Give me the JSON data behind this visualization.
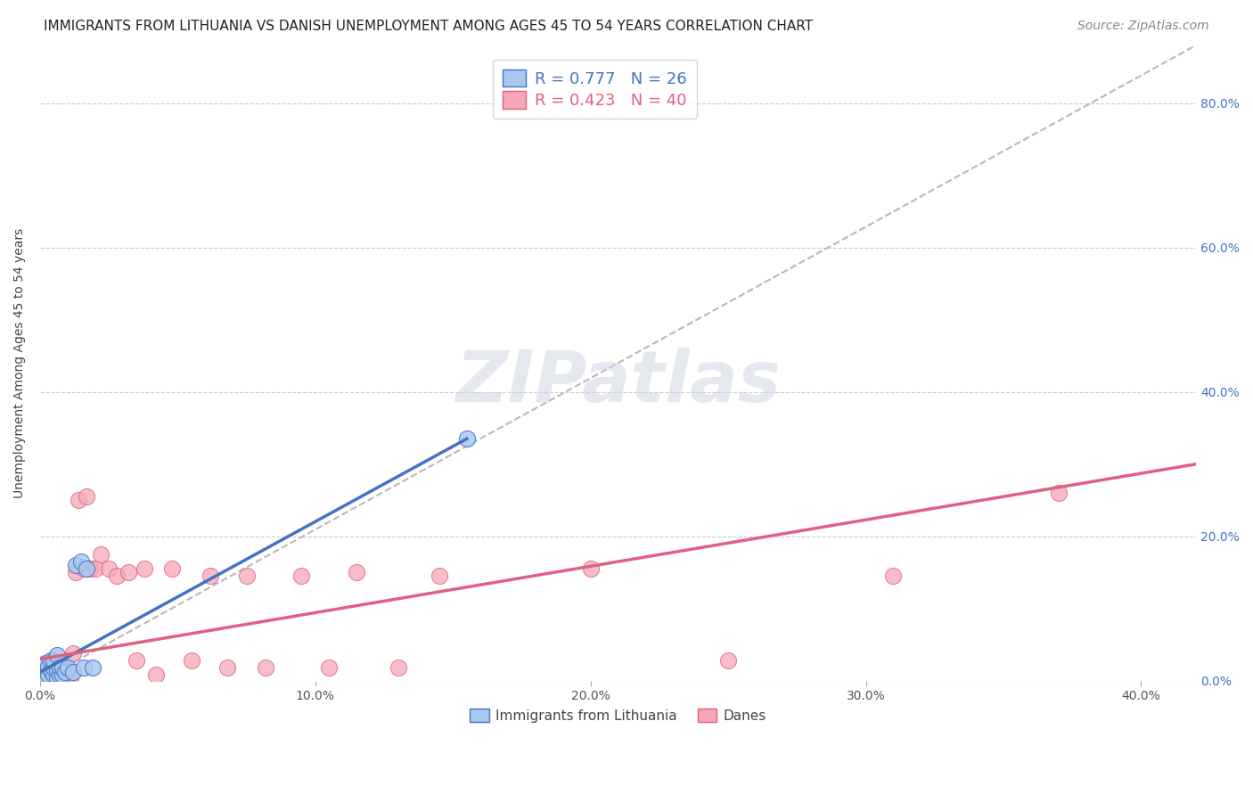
{
  "title": "IMMIGRANTS FROM LITHUANIA VS DANISH UNEMPLOYMENT AMONG AGES 45 TO 54 YEARS CORRELATION CHART",
  "source": "Source: ZipAtlas.com",
  "ylabel": "Unemployment Among Ages 45 to 54 years",
  "xlim": [
    0.0,
    0.42
  ],
  "ylim": [
    0.0,
    0.88
  ],
  "xtick_values": [
    0.0,
    0.1,
    0.2,
    0.3,
    0.4
  ],
  "ytick_values": [
    0.0,
    0.2,
    0.4,
    0.6,
    0.8
  ],
  "grid_color": "#cccccc",
  "background_color": "#ffffff",
  "legend_R1": "R = 0.777",
  "legend_N1": "N = 26",
  "legend_R2": "R = 0.423",
  "legend_N2": "N = 40",
  "color_blue": "#a8c8f0",
  "color_pink": "#f5a8b8",
  "color_blue_line": "#4472c4",
  "color_pink_line": "#e06080",
  "color_dashed_line": "#b8b8b8",
  "title_fontsize": 11,
  "label_fontsize": 10,
  "tick_fontsize": 10,
  "legend_fontsize": 13,
  "source_fontsize": 10,
  "blue_x": [
    0.001,
    0.002,
    0.002,
    0.003,
    0.003,
    0.004,
    0.004,
    0.005,
    0.005,
    0.005,
    0.006,
    0.006,
    0.006,
    0.007,
    0.007,
    0.008,
    0.008,
    0.009,
    0.01,
    0.012,
    0.013,
    0.015,
    0.016,
    0.017,
    0.019,
    0.155
  ],
  "blue_y": [
    0.005,
    0.015,
    0.025,
    0.008,
    0.02,
    0.015,
    0.028,
    0.008,
    0.018,
    0.028,
    0.005,
    0.015,
    0.035,
    0.008,
    0.018,
    0.008,
    0.018,
    0.012,
    0.018,
    0.012,
    0.16,
    0.165,
    0.018,
    0.155,
    0.018,
    0.335
  ],
  "pink_x": [
    0.001,
    0.002,
    0.003,
    0.004,
    0.005,
    0.006,
    0.007,
    0.008,
    0.009,
    0.01,
    0.011,
    0.012,
    0.013,
    0.014,
    0.016,
    0.017,
    0.018,
    0.02,
    0.022,
    0.025,
    0.028,
    0.032,
    0.035,
    0.038,
    0.042,
    0.048,
    0.055,
    0.062,
    0.068,
    0.075,
    0.082,
    0.095,
    0.105,
    0.115,
    0.13,
    0.145,
    0.2,
    0.25,
    0.31,
    0.37
  ],
  "pink_y": [
    0.005,
    0.015,
    0.008,
    0.018,
    0.025,
    0.008,
    0.018,
    0.005,
    0.018,
    0.012,
    0.005,
    0.038,
    0.15,
    0.25,
    0.155,
    0.255,
    0.155,
    0.155,
    0.175,
    0.155,
    0.145,
    0.15,
    0.028,
    0.155,
    0.008,
    0.155,
    0.028,
    0.145,
    0.018,
    0.145,
    0.018,
    0.145,
    0.018,
    0.15,
    0.018,
    0.145,
    0.155,
    0.028,
    0.145,
    0.26
  ],
  "blue_line_x": [
    0.0,
    0.155
  ],
  "blue_line_y": [
    0.012,
    0.335
  ],
  "pink_line_x": [
    0.0,
    0.42
  ],
  "pink_line_y": [
    0.03,
    0.3
  ],
  "dash_line_x": [
    0.0,
    0.42
  ],
  "dash_line_y": [
    0.0,
    0.88
  ]
}
